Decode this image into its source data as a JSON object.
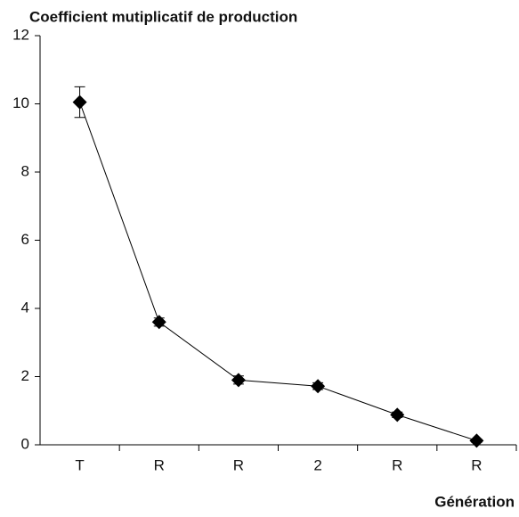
{
  "chart_data": {
    "type": "line",
    "title": "Coefficient mutiplicatif de production",
    "x_label": "Génération",
    "categories": [
      "T",
      "R",
      "R",
      "2",
      "R",
      "R"
    ],
    "values": [
      10.05,
      3.6,
      1.9,
      1.72,
      0.88,
      0.12
    ],
    "errors": [
      0.45,
      0.12,
      0.12,
      0.1,
      0.08,
      0.05
    ],
    "color": "#000000",
    "ylim": [
      0,
      12
    ],
    "yticks": [
      0,
      2,
      4,
      6,
      8,
      10,
      12
    ],
    "grid": false
  }
}
